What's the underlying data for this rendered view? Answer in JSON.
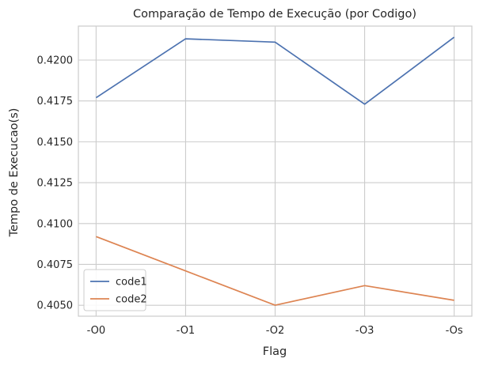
{
  "chart_data": {
    "type": "line",
    "title": "Comparação de Tempo de Execução (por Codigo)",
    "xlabel": "Flag",
    "ylabel": "Tempo de Execucao(s)",
    "categories": [
      "-O0",
      "-O1",
      "-O2",
      "-O3",
      "-Os"
    ],
    "series": [
      {
        "name": "code1",
        "color": "#4c72b0",
        "values": [
          0.4177,
          0.4213,
          0.4211,
          0.4173,
          0.4214
        ]
      },
      {
        "name": "code2",
        "color": "#dd8452",
        "values": [
          0.4092,
          0.4071,
          0.405,
          0.4062,
          0.4053
        ]
      }
    ],
    "ylim": [
      0.40433,
      0.42208
    ],
    "yticks": [
      0.405,
      0.4075,
      0.41,
      0.4125,
      0.415,
      0.4175,
      0.42
    ],
    "ytick_labels": [
      "0.4050",
      "0.4075",
      "0.4100",
      "0.4125",
      "0.4150",
      "0.4175",
      "0.4200"
    ],
    "grid": true,
    "legend_position": "lower-left",
    "background": "#ffffff",
    "grid_color": "#cccccc"
  }
}
